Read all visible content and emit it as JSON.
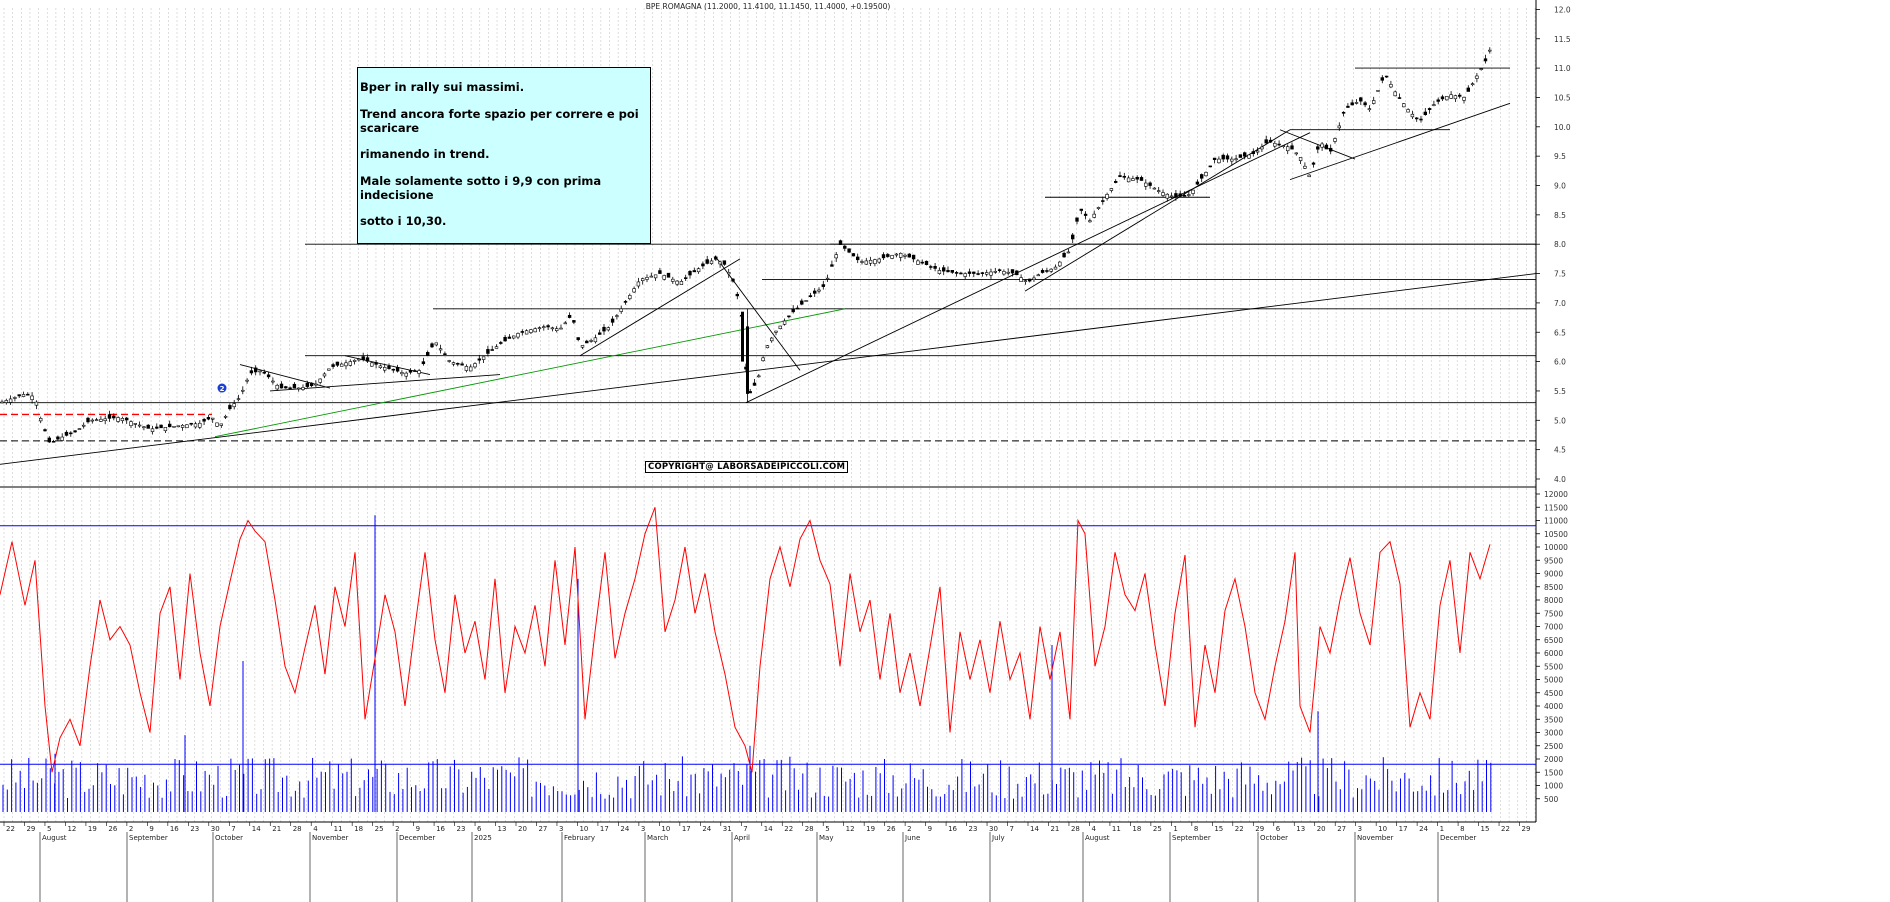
{
  "title": "BPE ROMAGNA (11.2000, 11.4100, 11.1450, 11.4000, +0.19500)",
  "annotation": {
    "lines": [
      "Bper in rally sui massimi.",
      "Trend ancora forte spazio per correre e poi scaricare",
      "rimanendo in trend.",
      "Male solamente sotto i 9,9  con prima indecisione",
      "sotto i 10,30."
    ]
  },
  "copyright": "COPYRIGHT@ LABORSADEIPICCOLI.COM",
  "marker_label": "2",
  "colors": {
    "candle": "#000000",
    "volume": "#0000ff",
    "oscillator": "#ff0000",
    "support_dashed_red": "#ff0000",
    "trend_green": "#009900",
    "note_bg": "#ccffff"
  },
  "chart_data": [
    {
      "type": "candlestick",
      "title": "BPE ROMAGNA (11.2000, 11.4100, 11.1450, 11.4000, +0.19500)",
      "ylim": [
        3.5,
        12.0
      ],
      "y_ticks": [
        "12.0",
        "11.5",
        "11.0",
        "10.5",
        "10.0",
        "9.5",
        "9.0",
        "8.5",
        "8.0",
        "7.5",
        "7.0",
        "6.5",
        "6.0",
        "5.5",
        "5.0",
        "4.5",
        "4.0"
      ],
      "months": [
        "August",
        "September",
        "October",
        "November",
        "December",
        "2025",
        "February",
        "March",
        "April",
        "May",
        "June",
        "July",
        "August",
        "September",
        "October",
        "November",
        "December"
      ],
      "day_ticks": [
        "22",
        "29",
        "5",
        "12",
        "19",
        "26",
        "2",
        "9",
        "16",
        "23",
        "30",
        "7",
        "14",
        "21",
        "28",
        "4",
        "11",
        "18",
        "25",
        "2",
        "9",
        "16",
        "23",
        "6",
        "13",
        "20",
        "27",
        "3",
        "10",
        "17",
        "24",
        "3",
        "10",
        "17",
        "24",
        "31",
        "7",
        "14",
        "22",
        "28",
        "5",
        "12",
        "19",
        "26",
        "2",
        "9",
        "16",
        "23",
        "30",
        "7",
        "14",
        "21",
        "28",
        "4",
        "11",
        "18",
        "25",
        "1",
        "8",
        "15",
        "22",
        "29",
        "6",
        "13",
        "20",
        "27",
        "3",
        "10",
        "17",
        "24",
        "1",
        "8",
        "15",
        "22",
        "29"
      ],
      "close_path": [
        [
          0,
          5.3
        ],
        [
          25,
          5.45
        ],
        [
          35,
          5.4
        ],
        [
          42,
          4.95
        ],
        [
          50,
          4.6
        ],
        [
          60,
          4.7
        ],
        [
          75,
          4.8
        ],
        [
          90,
          5.0
        ],
        [
          120,
          5.05
        ],
        [
          150,
          4.85
        ],
        [
          175,
          4.9
        ],
        [
          200,
          4.95
        ],
        [
          212,
          5.05
        ],
        [
          220,
          4.9
        ],
        [
          230,
          5.2
        ],
        [
          240,
          5.4
        ],
        [
          250,
          5.8
        ],
        [
          262,
          5.85
        ],
        [
          280,
          5.55
        ],
        [
          300,
          5.55
        ],
        [
          315,
          5.6
        ],
        [
          330,
          5.9
        ],
        [
          360,
          6.05
        ],
        [
          385,
          5.9
        ],
        [
          405,
          5.8
        ],
        [
          420,
          5.85
        ],
        [
          435,
          6.35
        ],
        [
          450,
          6.0
        ],
        [
          470,
          5.9
        ],
        [
          485,
          6.1
        ],
        [
          500,
          6.3
        ],
        [
          520,
          6.5
        ],
        [
          545,
          6.6
        ],
        [
          560,
          6.55
        ],
        [
          572,
          6.8
        ],
        [
          580,
          6.25
        ],
        [
          595,
          6.4
        ],
        [
          610,
          6.6
        ],
        [
          625,
          7.0
        ],
        [
          640,
          7.4
        ],
        [
          660,
          7.5
        ],
        [
          680,
          7.35
        ],
        [
          700,
          7.6
        ],
        [
          715,
          7.75
        ],
        [
          725,
          7.65
        ],
        [
          735,
          7.3
        ],
        [
          742,
          6.75
        ],
        [
          748,
          5.4
        ],
        [
          758,
          5.7
        ],
        [
          765,
          6.2
        ],
        [
          775,
          6.5
        ],
        [
          790,
          6.8
        ],
        [
          810,
          7.1
        ],
        [
          825,
          7.3
        ],
        [
          840,
          8.0
        ],
        [
          860,
          7.7
        ],
        [
          880,
          7.75
        ],
        [
          900,
          7.85
        ],
        [
          920,
          7.7
        ],
        [
          940,
          7.55
        ],
        [
          960,
          7.5
        ],
        [
          980,
          7.5
        ],
        [
          1000,
          7.55
        ],
        [
          1015,
          7.5
        ],
        [
          1028,
          7.35
        ],
        [
          1040,
          7.5
        ],
        [
          1055,
          7.6
        ],
        [
          1070,
          7.9
        ],
        [
          1080,
          8.6
        ],
        [
          1090,
          8.4
        ],
        [
          1105,
          8.8
        ],
        [
          1120,
          9.15
        ],
        [
          1140,
          9.1
        ],
        [
          1160,
          8.9
        ],
        [
          1175,
          8.8
        ],
        [
          1190,
          8.85
        ],
        [
          1205,
          9.2
        ],
        [
          1215,
          9.45
        ],
        [
          1235,
          9.45
        ],
        [
          1255,
          9.55
        ],
        [
          1268,
          9.75
        ],
        [
          1290,
          9.65
        ],
        [
          1300,
          9.5
        ],
        [
          1310,
          9.15
        ],
        [
          1320,
          9.75
        ],
        [
          1330,
          9.55
        ],
        [
          1345,
          10.3
        ],
        [
          1360,
          10.45
        ],
        [
          1370,
          10.3
        ],
        [
          1385,
          10.9
        ],
        [
          1395,
          10.6
        ],
        [
          1410,
          10.25
        ],
        [
          1420,
          10.1
        ],
        [
          1435,
          10.4
        ],
        [
          1450,
          10.55
        ],
        [
          1465,
          10.5
        ],
        [
          1478,
          10.9
        ],
        [
          1485,
          11.1
        ],
        [
          1492,
          11.4
        ]
      ]
    },
    {
      "type": "line",
      "name": "oscillator",
      "ylim": [
        0,
        12000
      ],
      "y_ticks": [
        "12000",
        "11500",
        "11000",
        "10500",
        "10000",
        "9500",
        "9000",
        "8500",
        "8000",
        "7500",
        "7000",
        "6500",
        "6000",
        "5500",
        "5000",
        "4500",
        "4000",
        "3500",
        "3000",
        "2500",
        "2000",
        "1500",
        "1000",
        "500"
      ],
      "reference_lines": [
        10800,
        1800
      ],
      "x": [
        0,
        12,
        25,
        35,
        45,
        52,
        60,
        70,
        80,
        90,
        100,
        110,
        120,
        130,
        140,
        150,
        160,
        170,
        180,
        190,
        200,
        210,
        220,
        230,
        240,
        248,
        255,
        265,
        275,
        285,
        295,
        305,
        315,
        325,
        335,
        345,
        355,
        365,
        375,
        385,
        395,
        405,
        415,
        425,
        435,
        445,
        455,
        465,
        475,
        485,
        495,
        505,
        515,
        525,
        535,
        545,
        555,
        565,
        575,
        585,
        595,
        605,
        615,
        625,
        635,
        645,
        655,
        665,
        675,
        685,
        695,
        705,
        715,
        725,
        735,
        745,
        752,
        760,
        770,
        780,
        790,
        800,
        810,
        820,
        830,
        840,
        850,
        860,
        870,
        880,
        890,
        900,
        910,
        920,
        930,
        940,
        950,
        960,
        970,
        980,
        990,
        1000,
        1010,
        1020,
        1030,
        1040,
        1050,
        1060,
        1070,
        1078,
        1085,
        1095,
        1105,
        1115,
        1125,
        1135,
        1145,
        1155,
        1165,
        1175,
        1185,
        1195,
        1205,
        1215,
        1225,
        1235,
        1245,
        1255,
        1265,
        1275,
        1285,
        1295,
        1300,
        1310,
        1320,
        1330,
        1340,
        1350,
        1360,
        1370,
        1380,
        1390,
        1400,
        1410,
        1420,
        1430,
        1440,
        1450,
        1460,
        1470,
        1480,
        1490
      ],
      "values": [
        8200,
        10200,
        7800,
        9500,
        4000,
        1500,
        2800,
        3500,
        2500,
        5500,
        8000,
        6500,
        7000,
        6300,
        4500,
        3000,
        7500,
        8500,
        5000,
        9000,
        6000,
        4000,
        7000,
        8700,
        10300,
        11000,
        10600,
        10200,
        8000,
        5500,
        4500,
        6200,
        7800,
        5200,
        8500,
        7000,
        9800,
        3500,
        5800,
        8200,
        6800,
        4000,
        7000,
        9800,
        6500,
        4500,
        8200,
        6000,
        7200,
        5000,
        8800,
        4500,
        7000,
        6000,
        7800,
        5500,
        9500,
        6300,
        10000,
        3500,
        6800,
        9800,
        5800,
        7500,
        8800,
        10500,
        11500,
        6800,
        8000,
        10000,
        7500,
        9000,
        6800,
        5200,
        3200,
        2500,
        1500,
        5500,
        8800,
        10000,
        8500,
        10300,
        11000,
        9500,
        8600,
        5500,
        9000,
        6800,
        8000,
        5000,
        7500,
        4500,
        6000,
        4000,
        6200,
        8500,
        3000,
        6800,
        5000,
        6500,
        4500,
        7200,
        5000,
        6000,
        3500,
        7000,
        5000,
        6800,
        3500,
        11000,
        10500,
        5500,
        7000,
        9800,
        8200,
        7600,
        9000,
        6300,
        4000,
        7500,
        9700,
        3200,
        6300,
        4500,
        7600,
        8800,
        7000,
        4500,
        3500,
        5500,
        7200,
        9800,
        4000,
        3000,
        7000,
        6000,
        8000,
        9600,
        7500,
        6300,
        9800,
        10200,
        8600,
        3200,
        4500,
        3500,
        7800,
        9500,
        6000,
        9800,
        8800,
        10100
      ]
    },
    {
      "type": "bar",
      "name": "volume",
      "ylim": [
        0,
        12000
      ],
      "tall_spikes": [
        [
          55,
          2200
        ],
        [
          185,
          2900
        ],
        [
          243,
          5700
        ],
        [
          375,
          11200
        ],
        [
          578,
          8800
        ],
        [
          750,
          2500
        ],
        [
          1052,
          6300
        ],
        [
          1318,
          3800
        ]
      ]
    }
  ]
}
